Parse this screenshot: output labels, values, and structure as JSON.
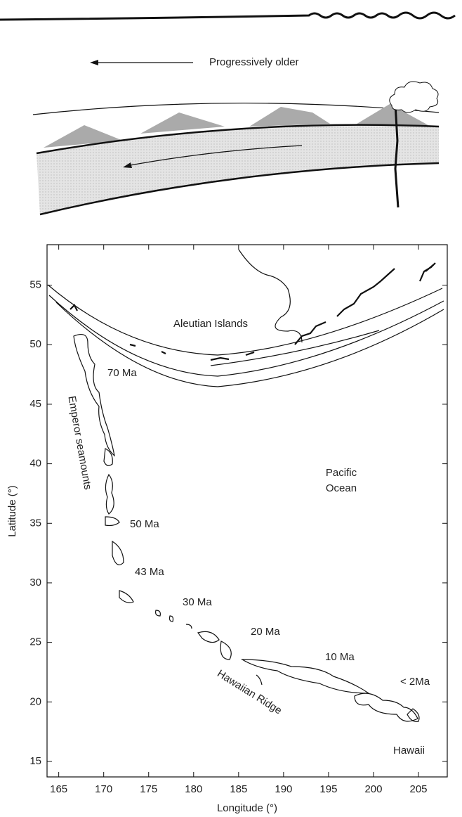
{
  "diagram": {
    "label": "Progressively older"
  },
  "map": {
    "xlabel": "Longitude (°)",
    "ylabel": "Latitude (°)",
    "xlim": [
      163.7,
      208.2
    ],
    "ylim": [
      13.7,
      58.4
    ],
    "xticks": [
      165,
      170,
      175,
      180,
      185,
      190,
      195,
      200,
      205
    ],
    "yticks": [
      15,
      20,
      25,
      30,
      35,
      40,
      45,
      50,
      55
    ],
    "labels": [
      "Aleutian Islands",
      "70 Ma",
      "Emperor seamounts",
      "Pacific",
      "Ocean",
      "50 Ma",
      "43 Ma",
      "30 Ma",
      "20 Ma",
      "10 Ma",
      "< 2Ma",
      "Hawaiian Ridge",
      "Hawaii"
    ]
  }
}
